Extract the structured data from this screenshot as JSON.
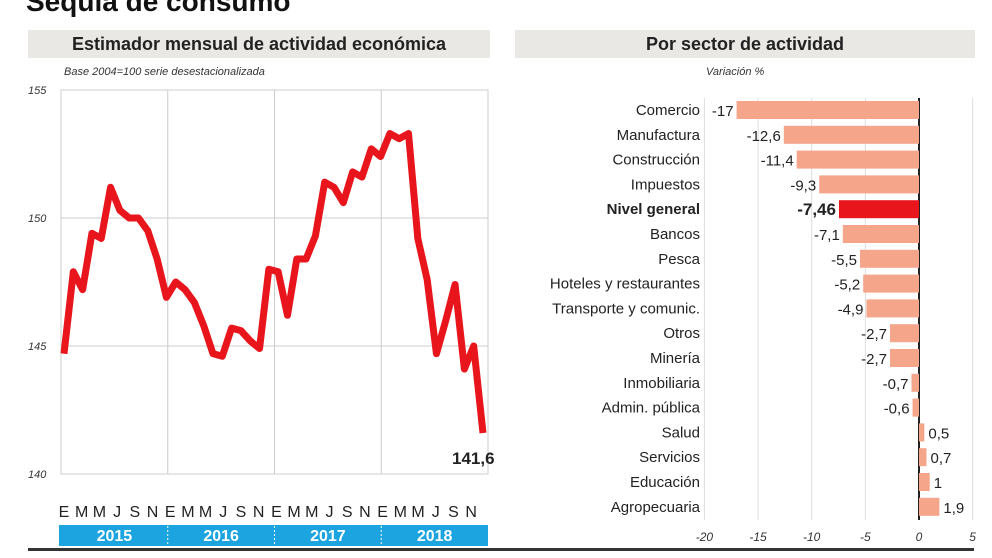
{
  "main_title": "Sequía de consumo",
  "chart_data": [
    {
      "type": "line",
      "title": "Estimador mensual de actividad económica",
      "subtitle": "Base 2004=100 serie desestacionalizada",
      "ylim": [
        140,
        155
      ],
      "yticks": [
        "155",
        "150",
        "145",
        "140"
      ],
      "ytick_values": [
        155,
        150,
        145,
        140
      ],
      "month_labels": [
        "E",
        "M",
        "M",
        "J",
        "S",
        "N",
        "E",
        "M",
        "M",
        "J",
        "S",
        "N",
        "E",
        "M",
        "M",
        "J",
        "S",
        "N",
        "E",
        "M",
        "M",
        "J",
        "S",
        "N"
      ],
      "years": [
        "2015",
        "2016",
        "2017",
        "2018"
      ],
      "grid": true,
      "color": "#e8161c",
      "year_band_color": "#1ba4e0",
      "values": [
        144.7,
        147.9,
        147.2,
        149.4,
        149.2,
        151.2,
        150.3,
        150.0,
        150.0,
        149.5,
        148.4,
        146.9,
        147.5,
        147.2,
        146.7,
        145.8,
        144.7,
        144.6,
        145.7,
        145.6,
        145.2,
        144.9,
        148.0,
        147.9,
        146.2,
        148.4,
        148.4,
        149.3,
        151.4,
        151.2,
        150.6,
        151.8,
        151.6,
        152.7,
        152.4,
        153.3,
        153.1,
        153.3,
        149.2,
        147.6,
        144.7,
        146.0,
        147.4,
        144.1,
        145.0,
        141.6
      ],
      "last_label": "141,6"
    },
    {
      "type": "bar",
      "orientation": "horizontal",
      "title": "Por sector de actividad",
      "xlabel": "Variación %",
      "xlim": [
        -20,
        5
      ],
      "xticks": [
        "-20",
        "-15",
        "-10",
        "-5",
        "0",
        "5"
      ],
      "xtick_values": [
        -20,
        -15,
        -10,
        -5,
        0,
        5
      ],
      "grid": true,
      "bar_color": "#f4a58a",
      "highlight_color": "#e8161c",
      "categories": [
        "Comercio",
        "Manufactura",
        "Construcción",
        "Impuestos",
        "Nivel general",
        "Bancos",
        "Pesca",
        "Hoteles y restaurantes",
        "Transporte y comunic.",
        "Otros",
        "Minería",
        "Inmobiliaria",
        "Admin. pública",
        "Salud",
        "Servicios",
        "Educación",
        "Agropecuaria"
      ],
      "values": [
        -17,
        -12.6,
        -11.4,
        -9.3,
        -7.46,
        -7.1,
        -5.5,
        -5.2,
        -4.9,
        -2.7,
        -2.7,
        -0.7,
        -0.6,
        0.5,
        0.7,
        1,
        1.9
      ],
      "labels": [
        "-17",
        "-12,6",
        "-11,4",
        "-9,3",
        "-7,46",
        "-7,1",
        "-5,5",
        "-5,2",
        "-4,9",
        "-2,7",
        "-2,7",
        "-0,7",
        "-0,6",
        "0,5",
        "0,7",
        "1",
        "1,9"
      ],
      "highlight": "Nivel general"
    }
  ]
}
